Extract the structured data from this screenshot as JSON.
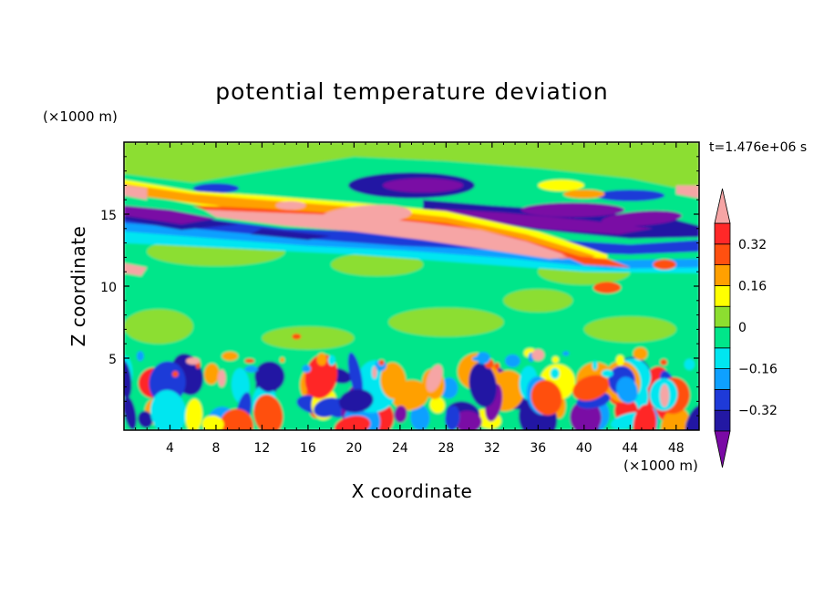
{
  "chart_data": {
    "type": "heatmap",
    "title": "potential temperature deviation",
    "xlabel": "X coordinate",
    "ylabel": "Z coordinate",
    "x_multiplier": "(×1000 m)",
    "y_multiplier": "(×1000 m)",
    "time_label": "t=1.476e+06 s",
    "xlim": [
      0,
      50
    ],
    "ylim": [
      0,
      20
    ],
    "x_ticks": [
      4,
      8,
      12,
      16,
      20,
      24,
      28,
      32,
      36,
      40,
      44,
      48
    ],
    "y_ticks": [
      5,
      10,
      15
    ],
    "x_tick_labels": [
      "4",
      "8",
      "12",
      "16",
      "20",
      "24",
      "28",
      "32",
      "36",
      "40",
      "44",
      "48"
    ],
    "y_tick_labels": [
      "5",
      "10",
      "15"
    ],
    "colorbar": {
      "levels": [
        -0.4,
        -0.32,
        -0.24,
        -0.16,
        -0.08,
        0,
        0.08,
        0.16,
        0.24,
        0.32,
        0.4
      ],
      "labels": [
        {
          "value": 0.32,
          "text": "0.32"
        },
        {
          "value": 0.16,
          "text": "0.16"
        },
        {
          "value": 0,
          "text": "0"
        },
        {
          "value": -0.16,
          "text": "−0.16"
        },
        {
          "value": -0.32,
          "text": "−0.32"
        }
      ],
      "colors": [
        "#7a0aa5",
        "#2318a3",
        "#1e3ad8",
        "#0ea0ff",
        "#00e6f0",
        "#00e68a",
        "#8cde30",
        "#ffff00",
        "#ffa000",
        "#ff5010",
        "#ff2828",
        "#f6a5a5"
      ]
    }
  }
}
